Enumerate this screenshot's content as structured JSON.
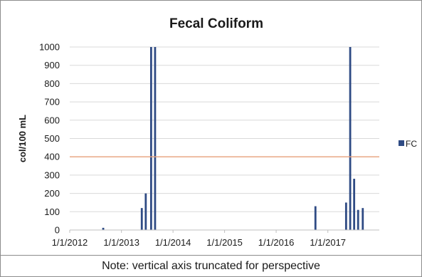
{
  "chart_data": {
    "type": "bar",
    "title": "Fecal Coliform",
    "ylabel": "col/100 mL",
    "xlabel": "",
    "ylim": [
      0,
      1000
    ],
    "yticks": [
      0,
      100,
      200,
      300,
      400,
      500,
      600,
      700,
      800,
      900,
      1000
    ],
    "xlim": [
      "1/1/2012",
      "12/31/2017"
    ],
    "xticks": [
      "1/1/2012",
      "1/1/2013",
      "1/1/2014",
      "1/1/2015",
      "1/1/2016",
      "1/1/2017"
    ],
    "grid": true,
    "legend": "right",
    "series": [
      {
        "name": "FC",
        "color": "#2f4b84",
        "points": [
          {
            "x": "2012-08-25",
            "y": 12
          },
          {
            "x": "2013-05-25",
            "y": 120
          },
          {
            "x": "2013-06-22",
            "y": 200
          },
          {
            "x": "2013-07-30",
            "y": 1000
          },
          {
            "x": "2013-08-27",
            "y": 1000
          },
          {
            "x": "2016-10-05",
            "y": 130
          },
          {
            "x": "2017-05-10",
            "y": 150
          },
          {
            "x": "2017-06-08",
            "y": 1000
          },
          {
            "x": "2017-07-06",
            "y": 280
          },
          {
            "x": "2017-08-03",
            "y": 110
          },
          {
            "x": "2017-09-05",
            "y": 120
          }
        ]
      }
    ],
    "reference_line": {
      "y": 400,
      "color": "#e8a27c"
    }
  },
  "note": "Note: vertical axis truncated for perspective"
}
